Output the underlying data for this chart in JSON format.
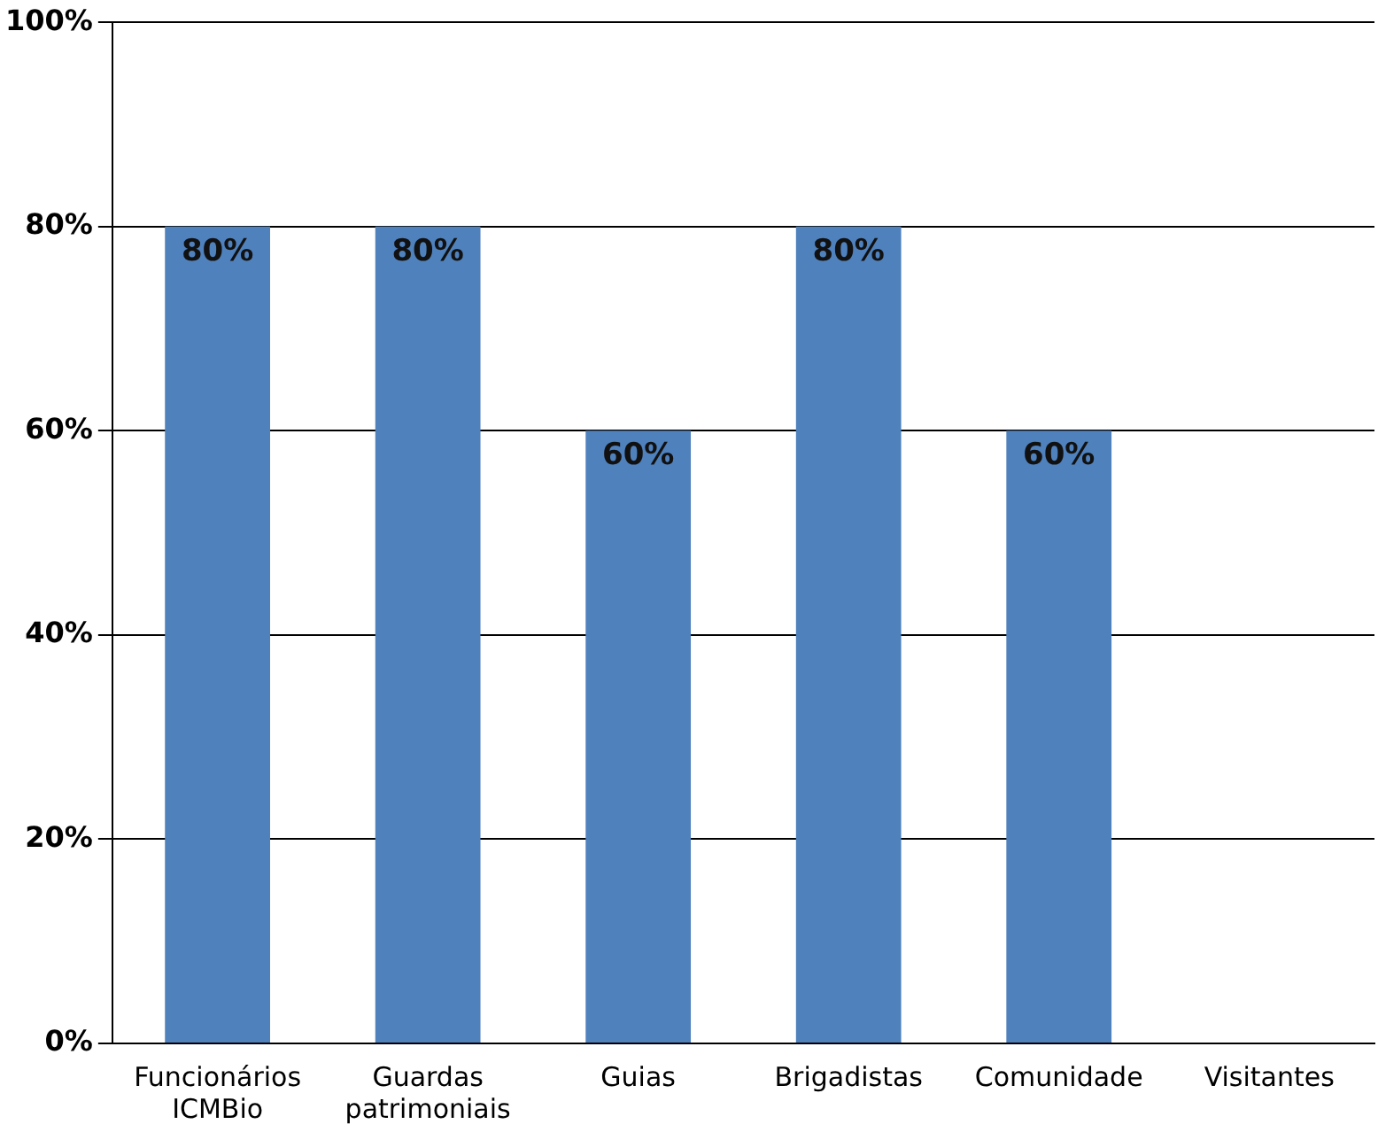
{
  "chart_data": {
    "type": "bar",
    "categories": [
      "Funcionários ICMBio",
      "Guardas patrimoniais",
      "Guias",
      "Brigadistas",
      "Comunidade",
      "Visitantes"
    ],
    "values": [
      80,
      80,
      60,
      80,
      60,
      0
    ],
    "color": "#4f81bd",
    "value_labels": [
      "80%",
      "80%",
      "60%",
      "80%",
      "60%",
      null
    ],
    "ylim": [
      0,
      100
    ],
    "yticks": [
      {
        "value": 0,
        "label": "0%"
      },
      {
        "value": 20,
        "label": "20%"
      },
      {
        "value": 40,
        "label": "40%"
      },
      {
        "value": 60,
        "label": "60%"
      },
      {
        "value": 80,
        "label": "80%"
      },
      {
        "value": 100,
        "label": "100%"
      }
    ],
    "grid": "y",
    "legend": false
  }
}
